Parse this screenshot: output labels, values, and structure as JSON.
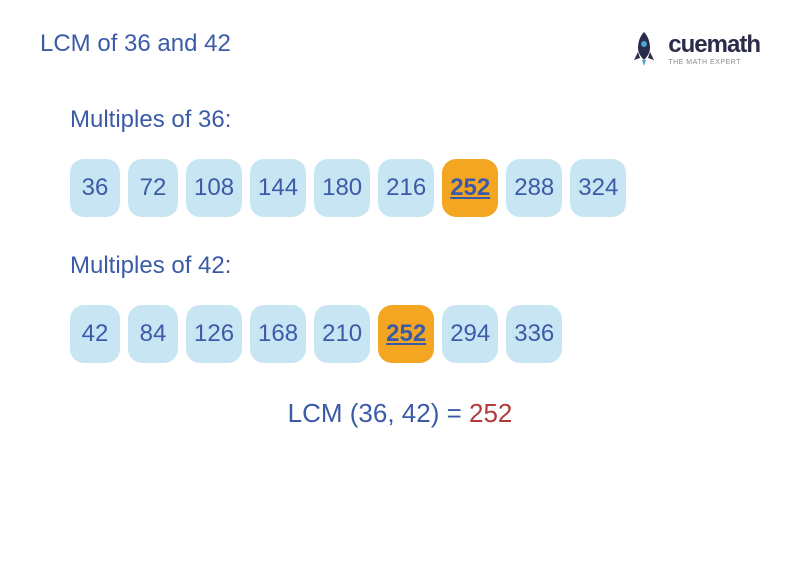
{
  "title": "LCM of 36 and 42",
  "title_color": "#3b5ba9",
  "logo": {
    "brand": "cuemath",
    "tagline": "THE MATH EXPERT",
    "brand_color": "#2b2b4a",
    "rocket_body_color": "#2b2b4a",
    "rocket_flame_color": "#4aa8d8"
  },
  "section1": {
    "label": "Multiples of 36:",
    "label_color": "#3b5ba9",
    "multiples": [
      {
        "value": "36",
        "highlight": false
      },
      {
        "value": "72",
        "highlight": false
      },
      {
        "value": "108",
        "highlight": false
      },
      {
        "value": "144",
        "highlight": false
      },
      {
        "value": "180",
        "highlight": false
      },
      {
        "value": "216",
        "highlight": false
      },
      {
        "value": "252",
        "highlight": true
      },
      {
        "value": "288",
        "highlight": false
      },
      {
        "value": "324",
        "highlight": false
      }
    ]
  },
  "section2": {
    "label": "Multiples of 42:",
    "label_color": "#3b5ba9",
    "multiples": [
      {
        "value": "42",
        "highlight": false
      },
      {
        "value": "84",
        "highlight": false
      },
      {
        "value": "126",
        "highlight": false
      },
      {
        "value": "168",
        "highlight": false
      },
      {
        "value": "210",
        "highlight": false
      },
      {
        "value": "252",
        "highlight": true
      },
      {
        "value": "294",
        "highlight": false
      },
      {
        "value": "336",
        "highlight": false
      }
    ]
  },
  "result": {
    "label": "LCM (36, 42) = ",
    "value": "252",
    "label_color": "#3b5ba9",
    "value_color": "#b33a3a"
  },
  "colors": {
    "normal_box_bg": "#c7e5f2",
    "highlight_box_bg": "#f4a623",
    "text_color": "#3b5ba9"
  }
}
